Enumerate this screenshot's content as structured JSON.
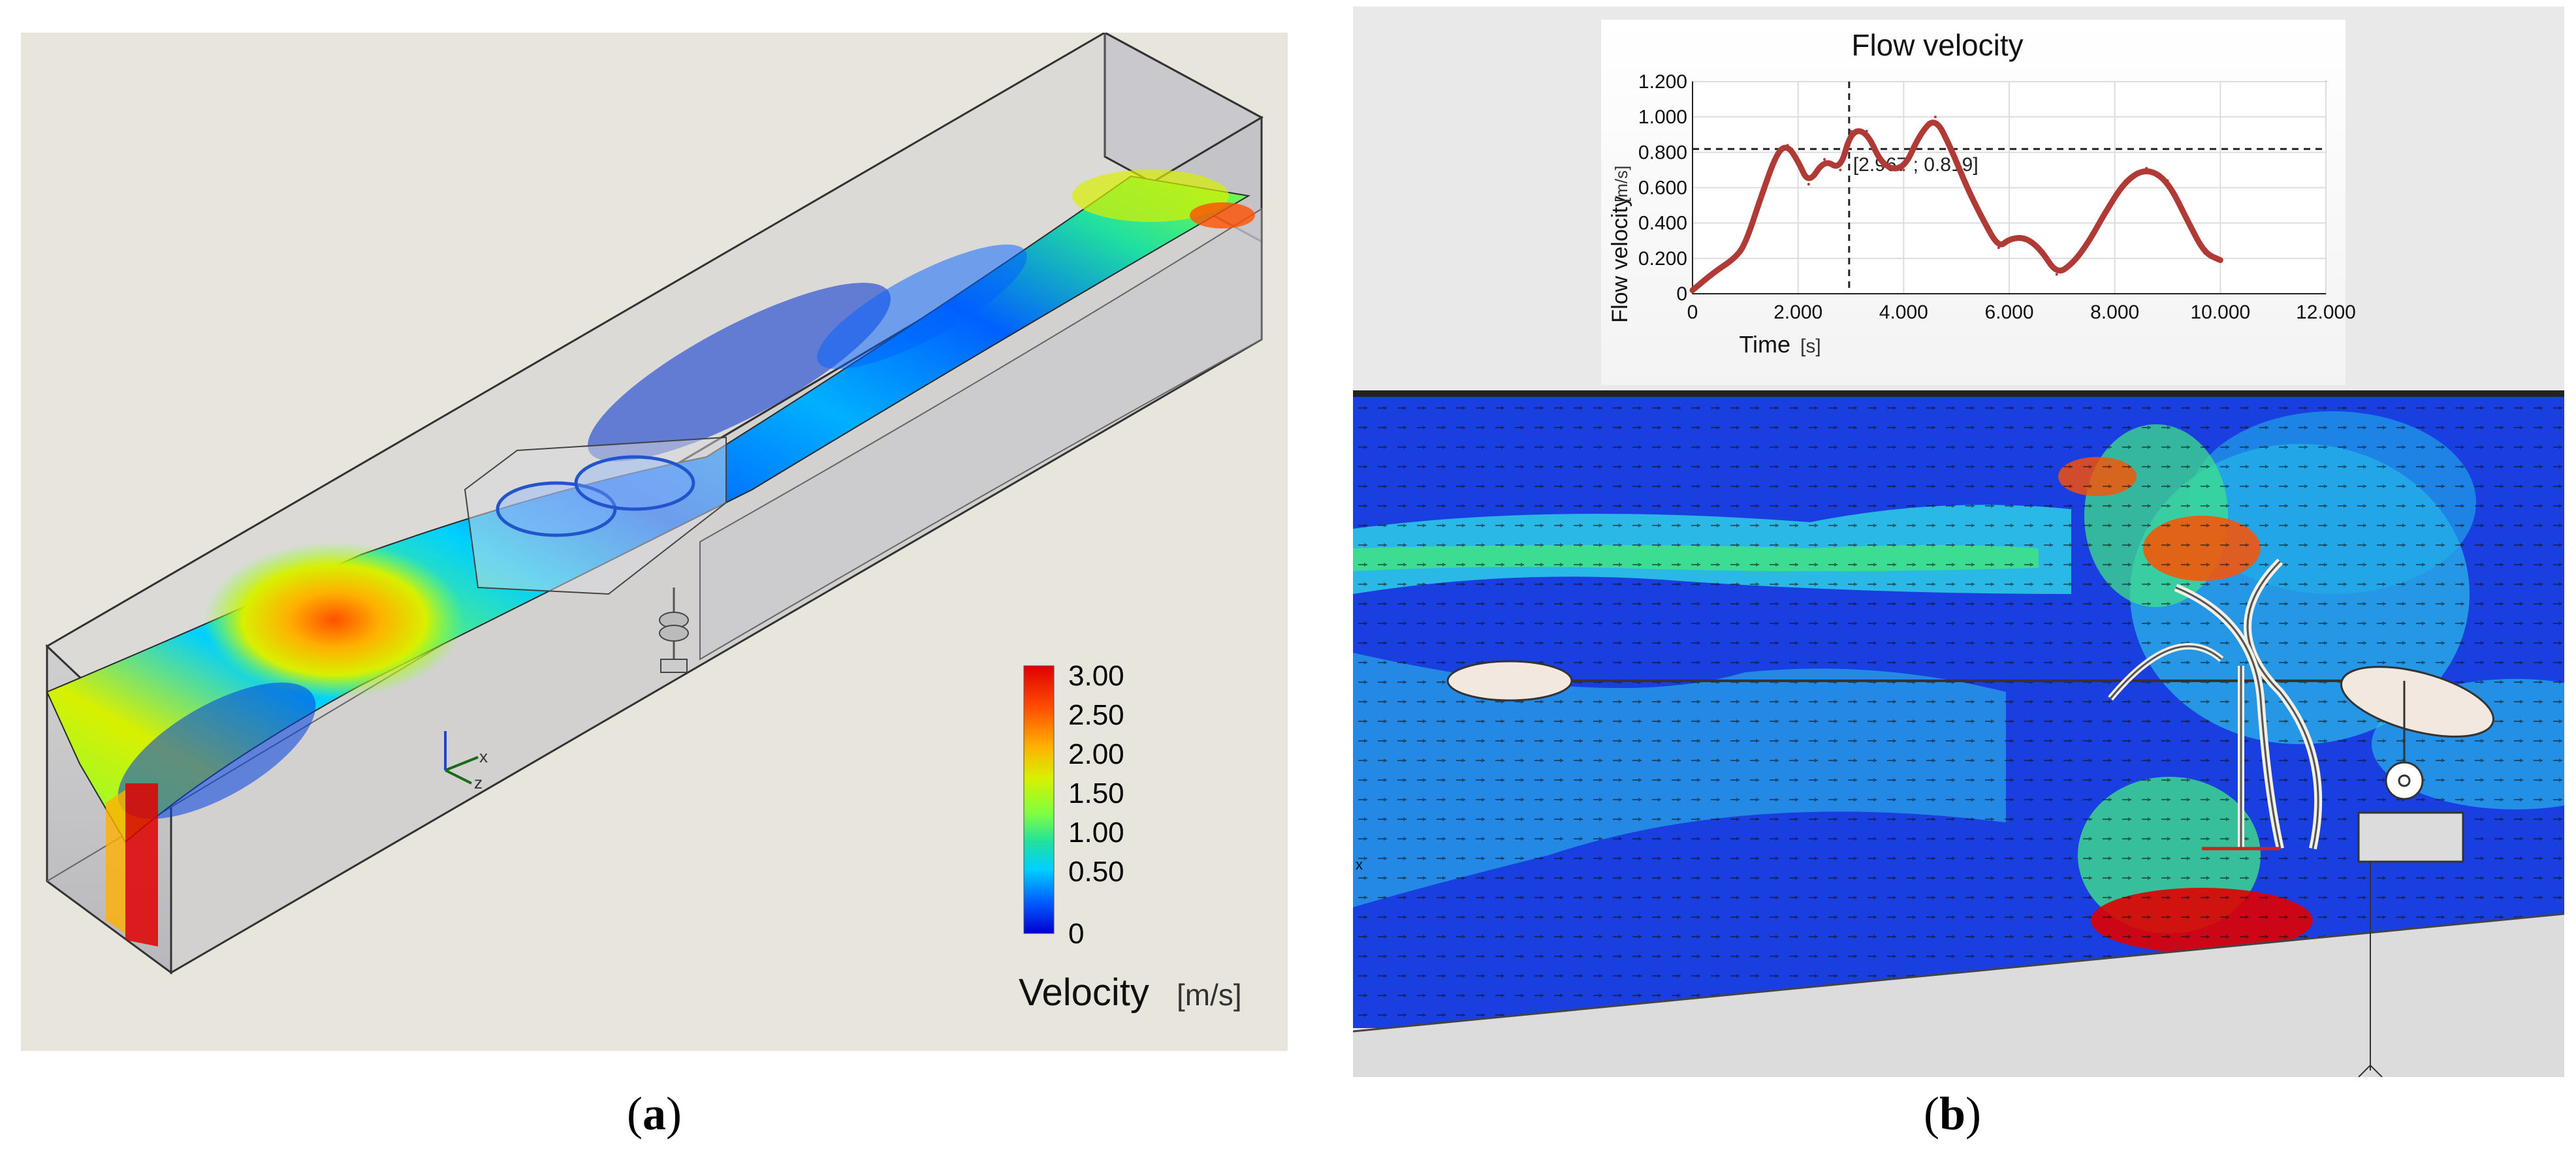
{
  "captions": {
    "a": "a",
    "b": "b"
  },
  "colors": {
    "velocity_scale": [
      "#0000d0",
      "#0060ff",
      "#00d0ff",
      "#20e0a0",
      "#80ff40",
      "#d8f000",
      "#ffb000",
      "#ff5000",
      "#e00000"
    ],
    "curve": "#b03a36",
    "panel_a_bg": "#e8e6dc"
  },
  "panel_a": {
    "legend": {
      "title": "Velocity",
      "unit": "[m/s]",
      "ticks": [
        "3.00",
        "2.50",
        "2.00",
        "1.50",
        "1.00",
        "0.50",
        "0"
      ]
    },
    "axis_triad": [
      "x",
      "z"
    ]
  },
  "panel_b": {
    "axis_marker": "x"
  },
  "chart_data": {
    "type": "line",
    "title": "Flow velocity",
    "xlabel": "Time",
    "xunit": "[s]",
    "ylabel": "Flow velocity",
    "yunit": "[m/s]",
    "xlim": [
      0,
      12000
    ],
    "ylim": [
      0,
      1200
    ],
    "xticks": [
      "0",
      "2.000",
      "4.000",
      "6.000",
      "8.000",
      "10.000",
      "12.000"
    ],
    "yticks": [
      "0",
      "0.200",
      "0.400",
      "0.600",
      "0.800",
      "1.000",
      "1.200"
    ],
    "grid": true,
    "cursor": {
      "x": 2967,
      "y": 819,
      "label": "[2.967 ; 0.819]"
    },
    "series": [
      {
        "x": [
          0,
          400,
          800,
          1000,
          1300,
          1600,
          1800,
          2000,
          2200,
          2500,
          2800,
          3000,
          3300,
          3600,
          4000,
          4300,
          4600,
          4900,
          5200,
          5500,
          5800,
          6000,
          6300,
          6600,
          6900,
          7200,
          7500,
          7800,
          8200,
          8600,
          9000,
          9400,
          9700,
          10000
        ],
        "y": [
          20,
          120,
          200,
          280,
          550,
          800,
          840,
          750,
          620,
          760,
          700,
          920,
          920,
          720,
          700,
          900,
          1000,
          820,
          600,
          420,
          260,
          310,
          320,
          250,
          110,
          170,
          290,
          450,
          640,
          710,
          640,
          400,
          230,
          190
        ]
      }
    ]
  }
}
